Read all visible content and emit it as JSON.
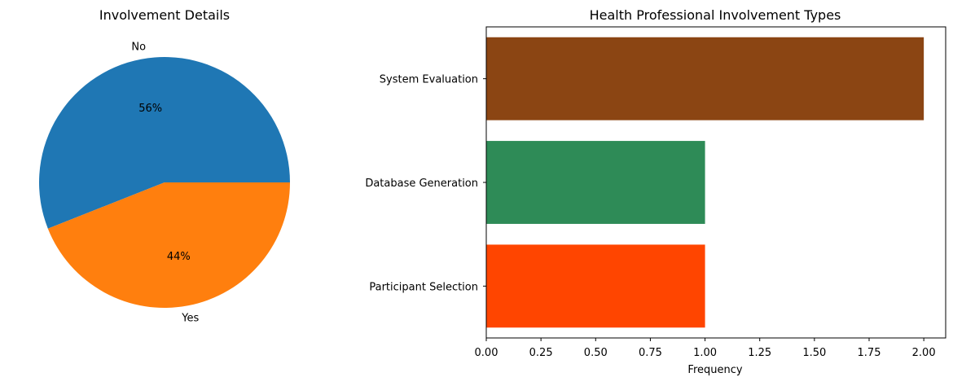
{
  "chart_data": [
    {
      "type": "pie",
      "title": "Involvement Details",
      "slices": [
        {
          "label": "No",
          "value": 56,
          "pct_label": "56%",
          "color": "#1f77b4"
        },
        {
          "label": "Yes",
          "value": 44,
          "pct_label": "44%",
          "color": "#ff7f0e"
        }
      ]
    },
    {
      "type": "bar",
      "orientation": "horizontal",
      "title": "Health Professional Involvement Types",
      "xlabel": "Frequency",
      "ylabel": "",
      "categories": [
        "System Evaluation",
        "Database Generation",
        "Participant Selection"
      ],
      "values": [
        2,
        1,
        1
      ],
      "colors": [
        "#8b4513",
        "#2e8b57",
        "#ff4500"
      ],
      "xlim": [
        0,
        2.1
      ],
      "xticks": [
        "0.00",
        "0.25",
        "0.50",
        "0.75",
        "1.00",
        "1.25",
        "1.50",
        "1.75",
        "2.00"
      ],
      "grid": false
    }
  ]
}
